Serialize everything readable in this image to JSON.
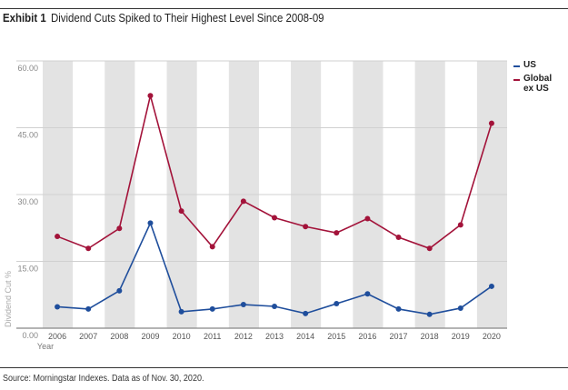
{
  "header": {
    "exhibit": "Exhibit 1",
    "title": "Dividend Cuts Spiked to Their Highest Level Since 2008-09"
  },
  "footer": {
    "source": "Source: Morningstar Indexes. Data as of Nov. 30, 2020."
  },
  "chart_data": {
    "type": "line",
    "title": "Dividend Cuts Spiked to Their Highest Level Since 2008-09",
    "xlabel": "Year",
    "ylabel": "Dividend Cut %",
    "ylim": [
      0,
      60
    ],
    "yticks": [
      "0.00",
      "15.00",
      "30.00",
      "45.00",
      "60.00"
    ],
    "categories": [
      "2006",
      "2007",
      "2008",
      "2009",
      "2010",
      "2011",
      "2012",
      "2013",
      "2014",
      "2015",
      "2016",
      "2017",
      "2018",
      "2019",
      "2020"
    ],
    "grid": true,
    "legend": "right",
    "series": [
      {
        "name": "US",
        "color": "#1f4e9c",
        "values": [
          4.8,
          4.3,
          8.4,
          23.6,
          3.7,
          4.3,
          5.3,
          4.9,
          3.3,
          5.5,
          7.7,
          4.3,
          3.1,
          4.5,
          9.4
        ]
      },
      {
        "name": "Global ex US",
        "color": "#a3133a",
        "values": [
          20.6,
          17.9,
          22.4,
          52.2,
          26.3,
          18.3,
          28.5,
          24.8,
          22.8,
          21.4,
          24.6,
          20.4,
          17.9,
          23.2,
          46.0
        ]
      }
    ]
  }
}
